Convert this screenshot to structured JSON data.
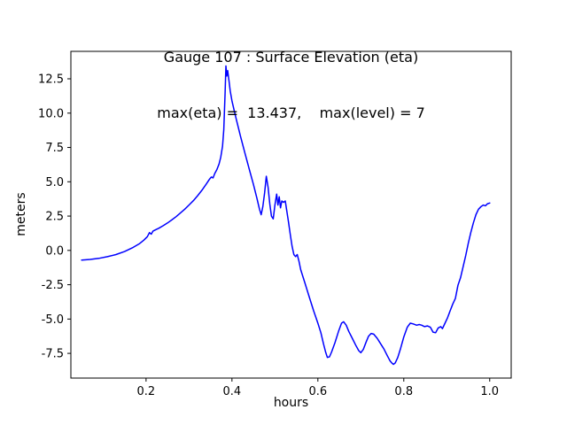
{
  "figure": {
    "title": "Gauge 107 : Surface Elevation (eta)",
    "subtitle": "max(eta) =  13.437,    max(level) = 7",
    "xlabel": "hours",
    "ylabel": "meters"
  },
  "chart_data": {
    "type": "line",
    "title": "Gauge 107 : Surface Elevation (eta)",
    "subtitle": "max(eta) =  13.437,    max(level) = 7",
    "xlabel": "hours",
    "ylabel": "meters",
    "legend": "none",
    "grid": false,
    "line_color": "#0000ff",
    "max_eta": 13.437,
    "max_level": 7,
    "xlim": [
      0.025,
      1.05
    ],
    "ylim": [
      -9.3,
      14.5
    ],
    "xticks": [
      0.2,
      0.4,
      0.6,
      0.8,
      1.0
    ],
    "xtick_labels": [
      "0.2",
      "0.4",
      "0.6",
      "0.8",
      "1.0"
    ],
    "yticks": [
      -7.5,
      -5.0,
      -2.5,
      0.0,
      2.5,
      5.0,
      7.5,
      10.0,
      12.5
    ],
    "ytick_labels": [
      "-7.5",
      "-5.0",
      "-2.5",
      "0.0",
      "2.5",
      "5.0",
      "7.5",
      "10.0",
      "12.5"
    ],
    "x": [
      0.05,
      0.07,
      0.09,
      0.11,
      0.13,
      0.15,
      0.17,
      0.185,
      0.195,
      0.203,
      0.208,
      0.212,
      0.216,
      0.222,
      0.23,
      0.24,
      0.25,
      0.26,
      0.27,
      0.28,
      0.29,
      0.3,
      0.31,
      0.32,
      0.33,
      0.34,
      0.348,
      0.352,
      0.356,
      0.36,
      0.365,
      0.37,
      0.374,
      0.378,
      0.381,
      0.384,
      0.386,
      0.388,
      0.39,
      0.393,
      0.396,
      0.4,
      0.405,
      0.41,
      0.42,
      0.43,
      0.44,
      0.45,
      0.458,
      0.464,
      0.468,
      0.472,
      0.476,
      0.48,
      0.484,
      0.488,
      0.492,
      0.496,
      0.5,
      0.504,
      0.507,
      0.51,
      0.513,
      0.516,
      0.52,
      0.524,
      0.528,
      0.532,
      0.536,
      0.54,
      0.544,
      0.548,
      0.552,
      0.556,
      0.56,
      0.57,
      0.58,
      0.59,
      0.6,
      0.607,
      0.613,
      0.618,
      0.622,
      0.627,
      0.632,
      0.64,
      0.648,
      0.655,
      0.66,
      0.666,
      0.672,
      0.68,
      0.688,
      0.695,
      0.7,
      0.706,
      0.712,
      0.718,
      0.724,
      0.73,
      0.738,
      0.746,
      0.754,
      0.762,
      0.768,
      0.772,
      0.776,
      0.78,
      0.786,
      0.792,
      0.8,
      0.808,
      0.815,
      0.822,
      0.83,
      0.836,
      0.842,
      0.848,
      0.855,
      0.862,
      0.868,
      0.874,
      0.88,
      0.886,
      0.89,
      0.896,
      0.902,
      0.908,
      0.914,
      0.92,
      0.926,
      0.932,
      0.938,
      0.944,
      0.95,
      0.956,
      0.962,
      0.968,
      0.974,
      0.98,
      0.985,
      0.99,
      0.995,
      1.0
    ],
    "y": [
      -0.7,
      -0.66,
      -0.58,
      -0.46,
      -0.3,
      -0.08,
      0.22,
      0.5,
      0.75,
      1.0,
      1.3,
      1.18,
      1.4,
      1.5,
      1.62,
      1.8,
      2.0,
      2.22,
      2.46,
      2.72,
      3.0,
      3.3,
      3.62,
      3.98,
      4.38,
      4.82,
      5.2,
      5.35,
      5.28,
      5.6,
      5.9,
      6.3,
      6.8,
      7.6,
      8.8,
      11.5,
      13.437,
      12.7,
      13.1,
      12.4,
      11.6,
      10.9,
      10.2,
      9.55,
      8.3,
      7.1,
      5.95,
      4.8,
      3.8,
      3.0,
      2.6,
      3.2,
      4.2,
      5.4,
      4.6,
      3.4,
      2.5,
      2.3,
      3.3,
      4.1,
      3.3,
      3.9,
      3.1,
      3.6,
      3.5,
      3.6,
      2.8,
      2.0,
      1.1,
      0.3,
      -0.3,
      -0.45,
      -0.3,
      -0.8,
      -1.4,
      -2.4,
      -3.4,
      -4.4,
      -5.3,
      -6.0,
      -6.8,
      -7.4,
      -7.8,
      -7.75,
      -7.4,
      -6.7,
      -5.9,
      -5.3,
      -5.2,
      -5.45,
      -5.9,
      -6.4,
      -6.9,
      -7.3,
      -7.45,
      -7.2,
      -6.7,
      -6.25,
      -6.05,
      -6.1,
      -6.4,
      -6.8,
      -7.2,
      -7.7,
      -8.05,
      -8.2,
      -8.3,
      -8.2,
      -7.8,
      -7.2,
      -6.3,
      -5.6,
      -5.3,
      -5.35,
      -5.45,
      -5.4,
      -5.45,
      -5.55,
      -5.5,
      -5.6,
      -5.95,
      -6.0,
      -5.65,
      -5.55,
      -5.7,
      -5.3,
      -4.9,
      -4.4,
      -3.9,
      -3.5,
      -2.55,
      -2.0,
      -1.2,
      -0.4,
      0.5,
      1.3,
      2.0,
      2.6,
      3.0,
      3.2,
      3.3,
      3.25,
      3.4,
      3.45
    ]
  }
}
